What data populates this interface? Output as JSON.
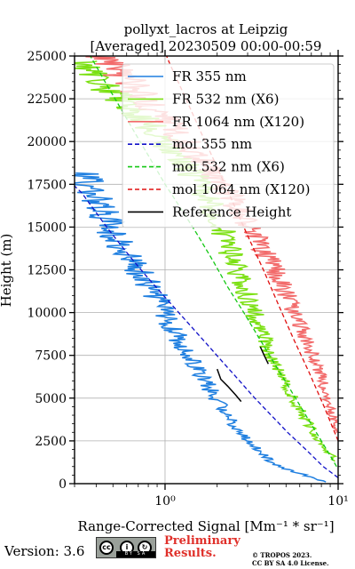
{
  "chart_data": {
    "type": "line",
    "title_line1": "pollyxt_lacros at Leipzig",
    "title_line2": "[Averaged] 20230509 00:00-00:59",
    "xlabel": "Range-Corrected Signal [Mm⁻¹ * sr⁻¹]",
    "ylabel": "Height (m)",
    "xscale": "log",
    "xlim": [
      0.3,
      10
    ],
    "ylim": [
      0,
      25000
    ],
    "grid": true,
    "legend_placement": "top-right",
    "x_tick_labels": [
      "10⁰",
      "10¹"
    ],
    "x_major_ticks": [
      1,
      10
    ],
    "y_ticks": [
      0,
      2500,
      5000,
      7500,
      10000,
      12500,
      15000,
      17500,
      20000,
      22500,
      25000
    ],
    "series": [
      {
        "name": "FR 355 nm",
        "color": "#1f7fe0",
        "style": "solid",
        "noisy": true,
        "points": [
          [
            8.5,
            100
          ],
          [
            7.5,
            300
          ],
          [
            5.5,
            700
          ],
          [
            4.2,
            1200
          ],
          [
            3.4,
            2000
          ],
          [
            2.7,
            3000
          ],
          [
            2.2,
            4200
          ],
          [
            1.8,
            5600
          ],
          [
            1.5,
            7000
          ],
          [
            1.2,
            8500
          ],
          [
            0.98,
            10000
          ],
          [
            0.85,
            11200
          ],
          [
            0.7,
            12500
          ],
          [
            0.6,
            13500
          ],
          [
            0.5,
            14700
          ],
          [
            0.45,
            15500
          ],
          [
            0.4,
            16500
          ],
          [
            0.36,
            17500
          ],
          [
            0.33,
            18200
          ]
        ]
      },
      {
        "name": "FR 532 nm (X6)",
        "color": "#7be012",
        "style": "solid",
        "noisy": true,
        "points": [
          [
            9.8,
            1300
          ],
          [
            8.5,
            2000
          ],
          [
            7.2,
            3000
          ],
          [
            6.3,
            4000
          ],
          [
            5.5,
            5000
          ],
          [
            4.6,
            6500
          ],
          [
            4.0,
            7800
          ],
          [
            3.4,
            9500
          ],
          [
            3.0,
            11000
          ],
          [
            2.6,
            12500
          ],
          [
            2.2,
            14500
          ],
          [
            1.9,
            16000
          ],
          [
            1.6,
            17500
          ],
          [
            1.3,
            18700
          ],
          [
            1.05,
            19800
          ],
          [
            0.85,
            20800
          ],
          [
            0.65,
            21800
          ],
          [
            0.5,
            22800
          ],
          [
            0.4,
            23800
          ],
          [
            0.32,
            24700
          ]
        ]
      },
      {
        "name": "FR 1064 nm (X120)",
        "color": "#f26b6b",
        "style": "solid",
        "noisy": true,
        "points": [
          [
            9.8,
            3000
          ],
          [
            9.0,
            4500
          ],
          [
            7.8,
            6500
          ],
          [
            6.5,
            8500
          ],
          [
            5.6,
            10000
          ],
          [
            4.6,
            12000
          ],
          [
            3.8,
            13500
          ],
          [
            3.1,
            15000
          ],
          [
            2.7,
            16000
          ],
          [
            2.3,
            17000
          ],
          [
            1.9,
            18000
          ],
          [
            1.6,
            19000
          ],
          [
            1.3,
            20000
          ],
          [
            1.05,
            21000
          ],
          [
            0.85,
            22000
          ],
          [
            0.7,
            23000
          ],
          [
            0.55,
            24000
          ],
          [
            0.45,
            25000
          ]
        ]
      },
      {
        "name": "mol 355 nm",
        "color": "#1010c8",
        "style": "dashed",
        "noisy": false,
        "points": [
          [
            10,
            350
          ],
          [
            8.2,
            1000
          ],
          [
            6.5,
            2000
          ],
          [
            5.1,
            3000
          ],
          [
            4.1,
            4000
          ],
          [
            3.3,
            5000
          ],
          [
            2.7,
            6000
          ],
          [
            2.2,
            7000
          ],
          [
            1.8,
            8000
          ],
          [
            1.47,
            9000
          ],
          [
            1.2,
            10000
          ],
          [
            0.98,
            11000
          ],
          [
            0.8,
            12000
          ],
          [
            0.66,
            13000
          ],
          [
            0.55,
            14000
          ],
          [
            0.46,
            15000
          ],
          [
            0.39,
            16000
          ],
          [
            0.33,
            17000
          ],
          [
            0.3,
            17400
          ]
        ]
      },
      {
        "name": "mol 532 nm (X6)",
        "color": "#14c814",
        "style": "dashed",
        "noisy": false,
        "points": [
          [
            9.8,
            1000
          ],
          [
            8.0,
            2500
          ],
          [
            6.5,
            4000
          ],
          [
            5.3,
            5500
          ],
          [
            4.3,
            7000
          ],
          [
            3.5,
            8500
          ],
          [
            2.85,
            10000
          ],
          [
            2.3,
            11500
          ],
          [
            1.9,
            13000
          ],
          [
            1.55,
            14500
          ],
          [
            1.25,
            16000
          ],
          [
            1.0,
            17500
          ],
          [
            0.82,
            19000
          ],
          [
            0.67,
            20500
          ],
          [
            0.55,
            22000
          ],
          [
            0.45,
            23500
          ],
          [
            0.37,
            25000
          ]
        ]
      },
      {
        "name": "mol 1064 nm (X120)",
        "color": "#e01010",
        "style": "dashed",
        "noisy": false,
        "points": [
          [
            10,
            2500
          ],
          [
            8.3,
            4500
          ],
          [
            6.8,
            6500
          ],
          [
            5.5,
            8500
          ],
          [
            4.5,
            10500
          ],
          [
            3.7,
            12500
          ],
          [
            3.0,
            14500
          ],
          [
            2.45,
            16500
          ],
          [
            2.0,
            18500
          ],
          [
            1.62,
            20500
          ],
          [
            1.32,
            22500
          ],
          [
            1.07,
            24500
          ],
          [
            1.02,
            25000
          ]
        ]
      },
      {
        "name": "Reference Height",
        "color": "#000000",
        "style": "solid",
        "noisy": false,
        "segments": [
          {
            "points": [
              [
                2.0,
                6700
              ],
              [
                2.1,
                6100
              ],
              [
                2.3,
                5700
              ],
              [
                2.55,
                5200
              ],
              [
                2.75,
                4800
              ]
            ]
          },
          {
            "points": [
              [
                3.55,
                8000
              ],
              [
                3.7,
                7600
              ],
              [
                3.95,
                7000
              ]
            ]
          }
        ]
      }
    ]
  },
  "footer": {
    "version": "Version: 3.6",
    "cc_strip": "BY SA",
    "preliminary_line1": "Preliminary",
    "preliminary_line2": "Results.",
    "copyright_line1": "© TROPOS 2023.",
    "copyright_line2": "CC BY SA 4.0 License."
  }
}
